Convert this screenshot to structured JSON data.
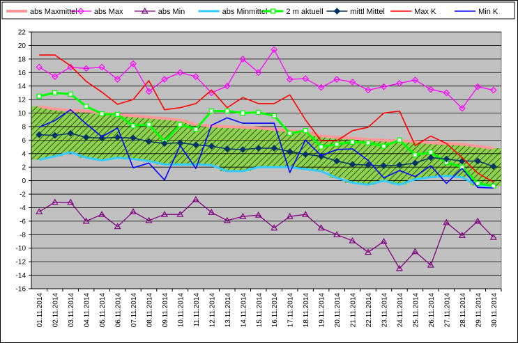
{
  "chart_data": {
    "type": "line",
    "title": "",
    "xlabel": "",
    "ylabel": "",
    "ylim": [
      -16,
      22
    ],
    "ytick_step": 2,
    "grid": true,
    "legend_position": "top",
    "plot_background": "#c0c0c0",
    "categories": [
      "01.11.2014",
      "02.11.2014",
      "03.11.2014",
      "04.11.2014",
      "05.11.2014",
      "06.11.2014",
      "07.11.2014",
      "08.11.2014",
      "09.11.2014",
      "10.11.2014",
      "11.11.2014",
      "12.11.2014",
      "13.11.2014",
      "14.11.2014",
      "15.11.2014",
      "16.11.2014",
      "17.11.2014",
      "18.11.2014",
      "19.11.2014",
      "20.11.2014",
      "21.11.2014",
      "22.11.2014",
      "23.11.2014",
      "24.11.2014",
      "25.11.2014",
      "26.11.2014",
      "27.11.2014",
      "28.11.2014",
      "29.11.2014",
      "30.11.2014"
    ],
    "band": {
      "upper_series": "abs Maxmittel",
      "lower_series": "abs Minmittel",
      "fill_color": "#8fd14f",
      "hatch_color": "#2a5a1a"
    },
    "series": [
      {
        "name": "abs Maxmittel",
        "color": "#ff9999",
        "marker": "none",
        "width": 4,
        "values": [
          11.0,
          10.6,
          10.4,
          10.3,
          10.0,
          9.8,
          9.6,
          9.4,
          9.2,
          9.0,
          8.3,
          8.1,
          8.0,
          7.9,
          7.8,
          7.6,
          7.4,
          7.2,
          6.6,
          6.4,
          6.3,
          6.1,
          6.0,
          5.9,
          5.8,
          5.6,
          5.5,
          5.4,
          5.1,
          4.8
        ]
      },
      {
        "name": "abs Max",
        "color": "#ff00ff",
        "marker": "diamond-open",
        "width": 1.3,
        "values": [
          16.8,
          15.4,
          16.8,
          16.6,
          16.8,
          15.0,
          17.3,
          13.2,
          15.0,
          16.0,
          15.4,
          13.0,
          14.0,
          18.0,
          16.0,
          19.4,
          15.0,
          15.1,
          13.8,
          15.0,
          14.6,
          13.4,
          13.9,
          14.4,
          14.9,
          13.5,
          13.0,
          10.7,
          13.9,
          13.4
        ]
      },
      {
        "name": "abs Min",
        "color": "#800080",
        "marker": "triangle-open",
        "width": 1.3,
        "values": [
          -4.6,
          -3.2,
          -3.2,
          -6.0,
          -5.0,
          -6.8,
          -4.6,
          -5.9,
          -5.0,
          -5.0,
          -2.8,
          -4.7,
          -5.9,
          -5.3,
          -5.1,
          -7.0,
          -5.3,
          -5.0,
          -7.0,
          -8.0,
          -8.9,
          -10.6,
          -9.0,
          -13.0,
          -10.5,
          -12.5,
          -6.2,
          -8.1,
          -6.0,
          -8.4
        ]
      },
      {
        "name": "abs Minmittel",
        "color": "#33ccff",
        "marker": "none",
        "width": 3,
        "values": [
          3.1,
          3.6,
          4.2,
          3.4,
          3.0,
          3.4,
          3.2,
          2.9,
          2.4,
          2.4,
          2.4,
          2.3,
          1.4,
          1.4,
          2.0,
          2.0,
          2.0,
          1.7,
          1.4,
          0.4,
          -0.3,
          -0.6,
          0.0,
          -0.6,
          0.2,
          0.5,
          0.7,
          0.5,
          -0.7,
          -0.8
        ]
      },
      {
        "name": "2 m aktuell",
        "color": "#00ff00",
        "marker": "square-open",
        "width": 3,
        "values": [
          12.5,
          13.0,
          12.8,
          11.0,
          9.9,
          9.8,
          8.1,
          8.3,
          5.8,
          8.3,
          7.6,
          10.3,
          10.3,
          10.0,
          10.1,
          9.6,
          7.0,
          7.4,
          5.0,
          5.4,
          5.7,
          5.6,
          5.1,
          6.0,
          3.8,
          4.2,
          2.7,
          2.0,
          -0.4,
          -0.8
        ]
      },
      {
        "name": "mittl Mittel",
        "color": "#003366",
        "marker": "diamond-filled",
        "width": 1.5,
        "values": [
          6.8,
          6.7,
          7.0,
          6.4,
          6.3,
          6.4,
          6.3,
          5.8,
          5.5,
          5.6,
          5.3,
          5.1,
          4.7,
          4.6,
          4.8,
          4.8,
          4.3,
          3.9,
          3.6,
          2.9,
          2.4,
          2.3,
          2.2,
          2.3,
          2.6,
          3.4,
          3.2,
          2.9,
          2.9,
          2.1
        ]
      },
      {
        "name": "Max K",
        "color": "#ff0000",
        "marker": "none",
        "width": 1.6,
        "values": [
          18.6,
          18.6,
          17.0,
          14.7,
          13.1,
          11.3,
          12.0,
          14.8,
          10.5,
          10.8,
          11.4,
          13.4,
          10.8,
          12.3,
          11.4,
          11.4,
          12.7,
          9.0,
          5.9,
          5.9,
          7.4,
          7.9,
          10.0,
          10.3,
          5.2,
          6.6,
          5.5,
          3.4,
          1.1,
          -0.2
        ]
      },
      {
        "name": "Min K",
        "color": "#0000ff",
        "marker": "none",
        "width": 1.6,
        "values": [
          7.9,
          8.9,
          10.5,
          8.4,
          6.5,
          7.8,
          1.9,
          2.6,
          0.1,
          5.2,
          1.8,
          8.2,
          9.3,
          8.5,
          8.5,
          8.5,
          1.2,
          6.0,
          3.7,
          4.6,
          4.7,
          3.0,
          0.4,
          1.5,
          0.6,
          2.2,
          -0.4,
          1.8,
          -1.0,
          -1.1
        ]
      }
    ]
  }
}
